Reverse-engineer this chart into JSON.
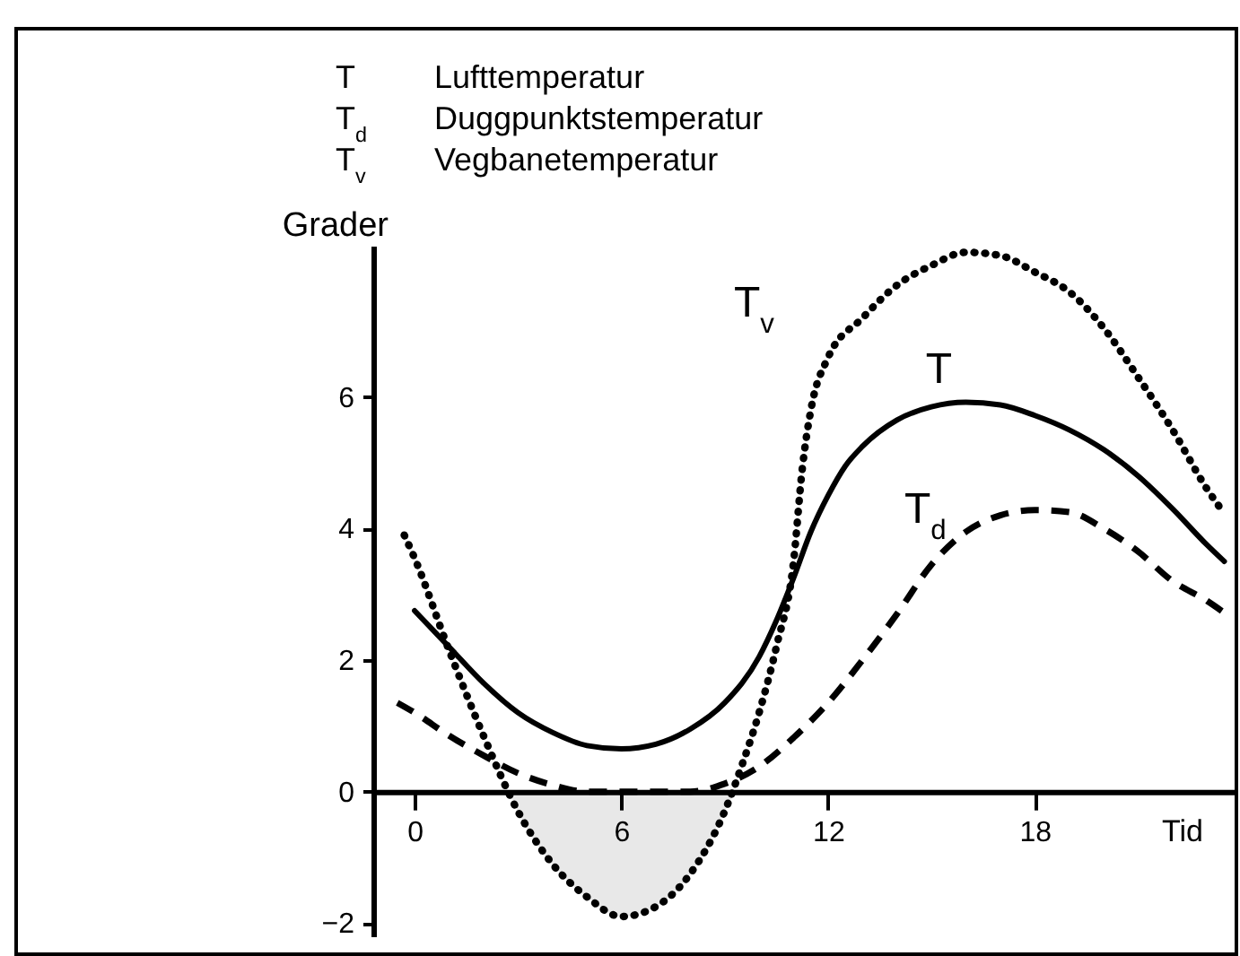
{
  "chart_data": {
    "type": "line",
    "ylabel": "Grader",
    "xlabel": "Tid",
    "annotations": [
      "T Lufttemperatur",
      "T$_{d}$ Duggpunktstemperatur",
      "T$_{v}$ Vegbanetemperatur"
    ],
    "xlim": [
      -1.2,
      23.8
    ],
    "xticks": [
      0,
      6,
      12,
      18
    ],
    "ylim": [
      -2.2,
      8.3
    ],
    "yticks": [
      -2,
      0,
      2,
      4,
      6
    ],
    "series": [
      {
        "name": "T",
        "color": "#000000",
        "line_style": "solid",
        "x": [
          0,
          1,
          2,
          3,
          4,
          5,
          6,
          7,
          8,
          9,
          10,
          10.5,
          11,
          11.5,
          12,
          12.5,
          13,
          14,
          15,
          16,
          17,
          18,
          19,
          20,
          21,
          22,
          23,
          23.5
        ],
        "values": [
          2.75,
          2.2,
          1.65,
          1.2,
          0.9,
          0.7,
          0.65,
          0.72,
          0.95,
          1.35,
          2.05,
          2.6,
          3.25,
          3.95,
          4.5,
          4.95,
          5.25,
          5.65,
          5.85,
          5.92,
          5.88,
          5.72,
          5.5,
          5.2,
          4.8,
          4.3,
          3.75,
          3.5
        ]
      },
      {
        "name": "T$_{d}$",
        "color": "#000000",
        "line_style": "dashed",
        "x": [
          -0.5,
          0,
          1,
          2,
          3,
          4,
          5,
          6,
          7,
          8,
          9,
          10,
          11,
          12,
          13,
          14,
          15,
          16,
          17,
          18,
          19,
          20,
          21,
          22,
          23,
          23.5
        ],
        "values": [
          1.35,
          1.2,
          0.85,
          0.55,
          0.28,
          0.1,
          0,
          0,
          0,
          0,
          0.12,
          0.38,
          0.82,
          1.35,
          2.0,
          2.7,
          3.45,
          3.95,
          4.2,
          4.28,
          4.25,
          4.0,
          3.65,
          3.2,
          2.9,
          2.72
        ]
      },
      {
        "name": "T$_{v}$",
        "color": "#000000",
        "line_style": "dotted",
        "x": [
          -0.3,
          0,
          1,
          2,
          3,
          4,
          5,
          6,
          7,
          8,
          9,
          9.5,
          10,
          10.5,
          11,
          11.25,
          11.5,
          12,
          13,
          14,
          15,
          16,
          17,
          18,
          19,
          20,
          21,
          22,
          23,
          23.4
        ],
        "values": [
          3.9,
          3.55,
          2.15,
          0.85,
          -0.3,
          -1.1,
          -1.6,
          -1.9,
          -1.75,
          -1.25,
          -0.3,
          0.4,
          1.2,
          2.2,
          3.5,
          4.9,
          5.8,
          6.6,
          7.2,
          7.7,
          8.0,
          8.2,
          8.15,
          7.9,
          7.6,
          7.05,
          6.3,
          5.5,
          4.6,
          4.3
        ]
      },
      {
        "type": "area",
        "color": "#e8e8e8",
        "x": [
          2.75,
          3,
          4,
          5,
          6,
          7,
          8,
          9,
          9.3
        ],
        "values": [
          0,
          -0.3,
          -1.1,
          -1.6,
          -1.9,
          -1.75,
          -1.25,
          -0.3,
          0
        ]
      }
    ]
  }
}
